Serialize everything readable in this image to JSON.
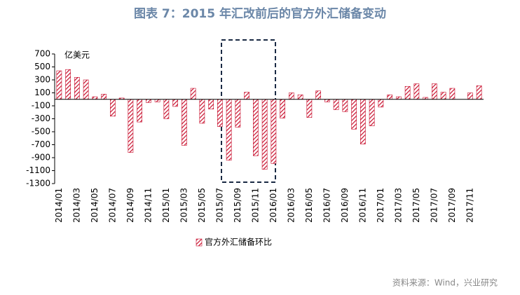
{
  "chart_data": {
    "type": "bar",
    "title": "图表 7：2015 年汇改前后的官方外汇储备变动",
    "unit_label": "亿美元",
    "source": "资料来源：Wind，兴业研究",
    "categories": [
      "2014/01",
      null,
      "2014/03",
      null,
      "2014/05",
      null,
      "2014/07",
      null,
      "2014/09",
      null,
      "2014/11",
      null,
      "2015/01",
      null,
      "2015/03",
      null,
      "2015/05",
      null,
      "2015/07",
      null,
      "2015/09",
      null,
      "2015/11",
      null,
      "2016/01",
      null,
      "2016/03",
      null,
      "2016/05",
      null,
      "2016/07",
      null,
      "2016/09",
      null,
      "2016/11",
      null,
      "2017/01",
      null,
      "2017/03",
      null,
      "2017/05",
      null,
      "2017/07",
      null,
      "2017/09",
      null,
      "2017/11",
      null
    ],
    "series": [
      {
        "name": "官方外汇储备环比",
        "color": "#c8102e",
        "values": [
          440,
          460,
          340,
          300,
          40,
          80,
          -260,
          20,
          -820,
          -350,
          -50,
          -40,
          -300,
          -110,
          -710,
          170,
          -370,
          -150,
          -420,
          -940,
          -430,
          110,
          -870,
          -1080,
          -990,
          -290,
          100,
          70,
          -280,
          130,
          -40,
          -160,
          -190,
          -460,
          -690,
          -410,
          -120,
          70,
          40,
          200,
          240,
          30,
          240,
          110,
          170,
          0,
          100,
          210
        ]
      }
    ],
    "ylim": [
      -1300,
      700
    ],
    "yticks": [
      -1300,
      -1100,
      -900,
      -700,
      -500,
      -300,
      -100,
      100,
      300,
      500,
      700
    ]
  }
}
